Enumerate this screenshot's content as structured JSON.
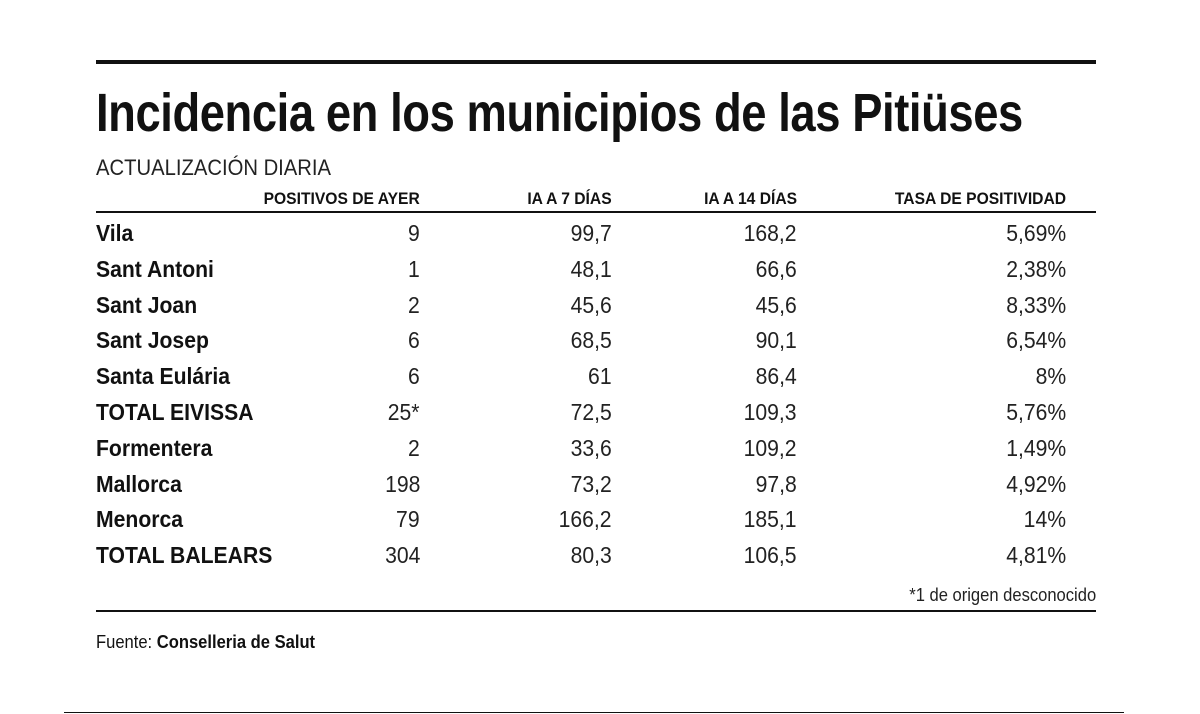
{
  "header": {
    "title": "Incidencia en los municipios de las Pitiüses",
    "subtitle": "ACTUALIZACIÓN DIARIA"
  },
  "table": {
    "columns": [
      "POSITIVOS DE AYER",
      "IA A 7 DÍAS",
      "IA A 14 DÍAS",
      "TASA DE POSITIVIDAD"
    ],
    "rows": [
      [
        "Vila",
        "9",
        "99,7",
        "168,2",
        "5,69%"
      ],
      [
        "Sant Antoni",
        "1",
        "48,1",
        "66,6",
        "2,38%"
      ],
      [
        "Sant Joan",
        "2",
        "45,6",
        "45,6",
        "8,33%"
      ],
      [
        "Sant Josep",
        "6",
        "68,5",
        "90,1",
        "6,54%"
      ],
      [
        "Santa Eulária",
        "6",
        "61",
        "86,4",
        "8%"
      ],
      [
        "TOTAL EIVISSA",
        "25*",
        "72,5",
        "109,3",
        "5,76%"
      ],
      [
        "Formentera",
        "2",
        "33,6",
        "109,2",
        "1,49%"
      ],
      [
        "Mallorca",
        "198",
        "73,2",
        "97,8",
        "4,92%"
      ],
      [
        "Menorca",
        "79",
        "166,2",
        "185,1",
        "14%"
      ],
      [
        "TOTAL BALEARS",
        "304",
        "80,3",
        "106,5",
        "4,81%"
      ]
    ],
    "footnote": "*1 de origen desconocido"
  },
  "source": {
    "label": "Fuente:",
    "name": "Conselleria de Salut"
  }
}
